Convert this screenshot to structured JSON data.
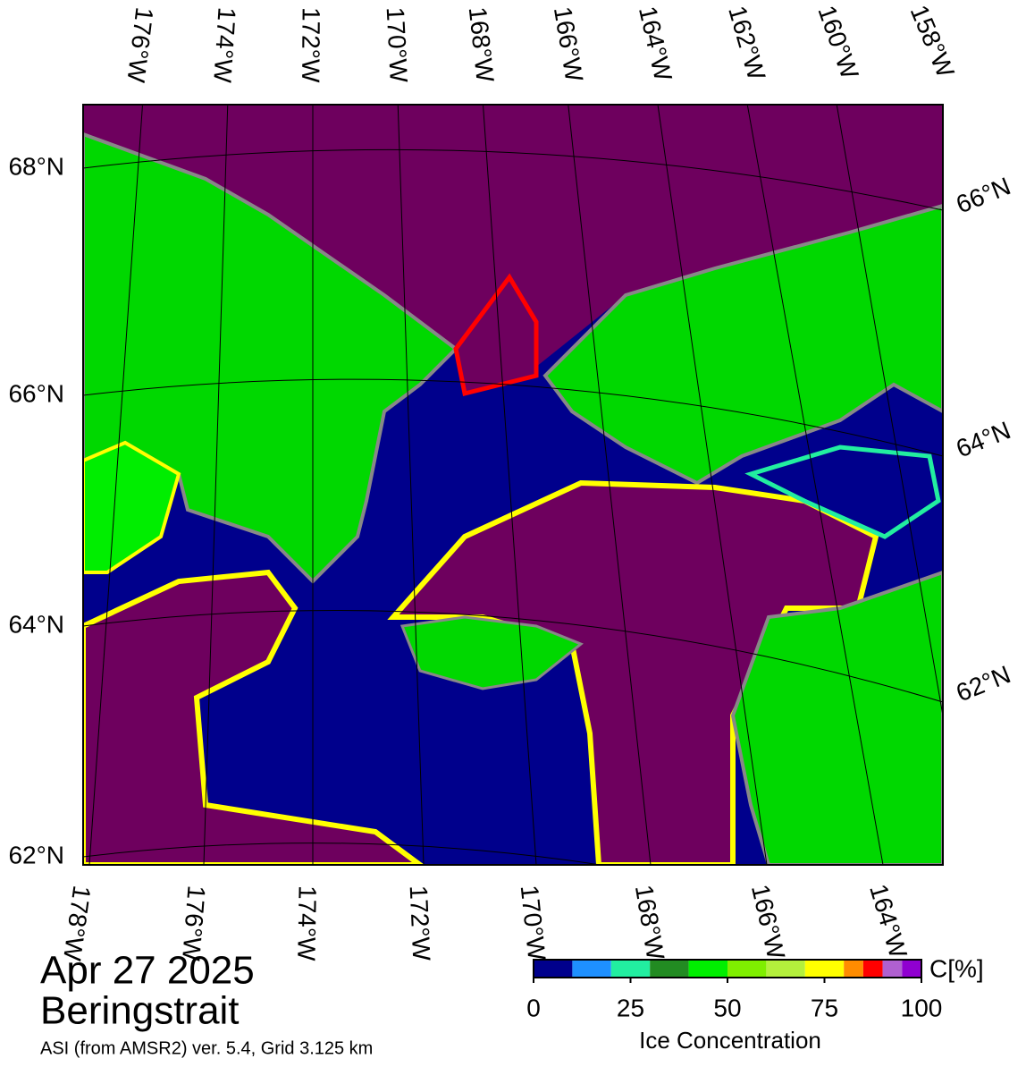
{
  "title": "Apr 27 2025",
  "region": "Beringstrait",
  "source": "ASI (from AMSR2) ver. 5.4,  Grid 3.125 km",
  "top_lon_labels": [
    "176°W",
    "174°W",
    "172°W",
    "170°W",
    "168°W",
    "166°W",
    "164°W",
    "162°W",
    "160°W",
    "158°W"
  ],
  "bottom_lon_labels": [
    "178°W",
    "176°W",
    "174°W",
    "172°W",
    "170°W",
    "168°W",
    "166°W",
    "164°W"
  ],
  "left_lat_labels": [
    "68°N",
    "66°N",
    "64°N",
    "62°N"
  ],
  "right_lat_labels": [
    "66°N",
    "64°N",
    "62°N"
  ],
  "colorbar": {
    "label": "Ice Concentration",
    "unit": "C[%]",
    "lim": [
      0,
      100
    ],
    "ticks": [
      0,
      25,
      50,
      75,
      100
    ],
    "bins": [
      0,
      10,
      20,
      30,
      40,
      50,
      60,
      70,
      80,
      85,
      90,
      95,
      100
    ],
    "colors": [
      "#00008c",
      "#1e90ff",
      "#22eea0",
      "#228b22",
      "#00ee00",
      "#7fee00",
      "#b4f03c",
      "#ffff00",
      "#ff8c00",
      "#ff0000",
      "#b060d0",
      "#9000d0"
    ]
  }
}
